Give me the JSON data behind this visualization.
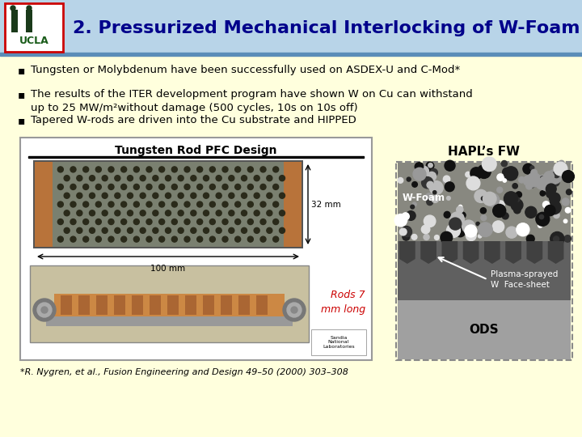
{
  "background_color": "#FFFFDD",
  "title_text": "2. Pressurized Mechanical Interlocking of W-Foam",
  "title_color": "#00008B",
  "title_fontsize": 16,
  "bullet_points": [
    "Tungsten or Molybdenum have been successfully used on ASDEX-U and C-Mod*",
    "The results of the ITER development program have shown W on Cu can withstand\nup to 25 MW/m²without damage (500 cycles, 10s on 10s off)",
    "Tapered W-rods are driven into the Cu substrate and HIPPED"
  ],
  "bullet_fontsize": 9.5,
  "bullet_color": "#000000",
  "caption_text": "*R. Nygren, et al., Fusion Engineering and Design 49–50 (2000) 303–308",
  "caption_fontsize": 8,
  "hapl_label": "HAPL’s FW",
  "wfoam_label": "W-Foam",
  "plasma_label": "Plasma-sprayed\nW  Face-sheet",
  "ods_label": "ODS",
  "rods_label": "Rods 7\nmm long",
  "tungsten_rod_title": "Tungsten Rod PFC Design",
  "dim_32mm": "32 mm",
  "dim_100mm": "100 mm",
  "header_blue_light": "#B8D4E8",
  "header_blue_dark": "#5B8DB8",
  "logo_border": "#CC0000",
  "logo_text_color": "#1A5C1A"
}
